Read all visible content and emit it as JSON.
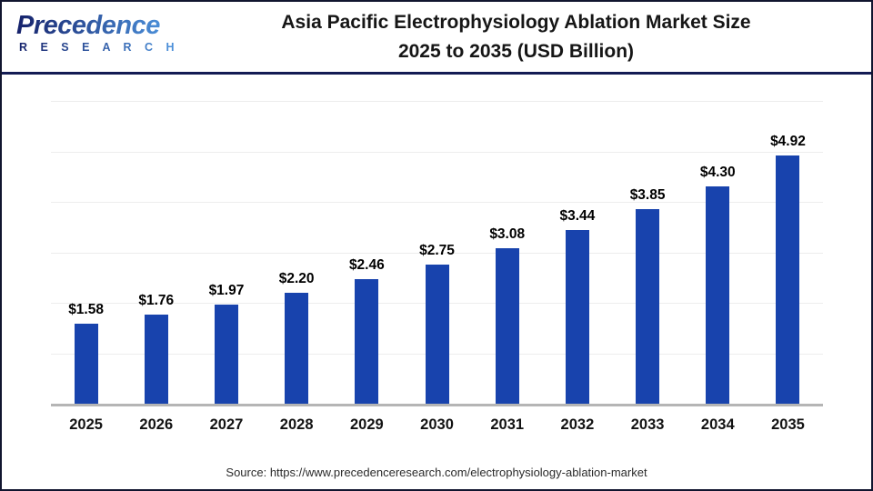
{
  "logo": {
    "word": "Precedence",
    "subword": "R E S E A R C H"
  },
  "header": {
    "title_line1": "Asia Pacific Electrophysiology Ablation Market Size",
    "title_line2": "2025 to 2035 (USD Billion)"
  },
  "chart_data": {
    "type": "bar",
    "title": "Asia Pacific Electrophysiology Ablation Market Size 2025 to 2035 (USD Billion)",
    "categories": [
      "2025",
      "2026",
      "2027",
      "2028",
      "2029",
      "2030",
      "2031",
      "2032",
      "2033",
      "2034",
      "2035"
    ],
    "values": [
      1.58,
      1.76,
      1.97,
      2.2,
      2.46,
      2.75,
      3.08,
      3.44,
      3.85,
      4.3,
      4.92
    ],
    "labels": [
      "$1.58",
      "$1.76",
      "$1.97",
      "$2.20",
      "$2.46",
      "$2.75",
      "$3.08",
      "$3.44",
      "$3.85",
      "$4.30",
      "$4.92"
    ],
    "value_prefix": "$",
    "unit": "USD Billion",
    "xlabel": "",
    "ylabel": "",
    "ylim": [
      0,
      6.5
    ],
    "gridline_step": 1,
    "grid": true,
    "legend": false
  },
  "footer": {
    "source": "Source: https://www.precedenceresearch.com/electrophysiology-ablation-market"
  },
  "colors": {
    "bar": "#1843ad",
    "divider": "#131c54",
    "frame_border": "#11152f",
    "baseline": "#b5b5b5",
    "gridline": "#ededed",
    "logo_dark": "#16226b",
    "logo_light": "#4b8fd9"
  }
}
